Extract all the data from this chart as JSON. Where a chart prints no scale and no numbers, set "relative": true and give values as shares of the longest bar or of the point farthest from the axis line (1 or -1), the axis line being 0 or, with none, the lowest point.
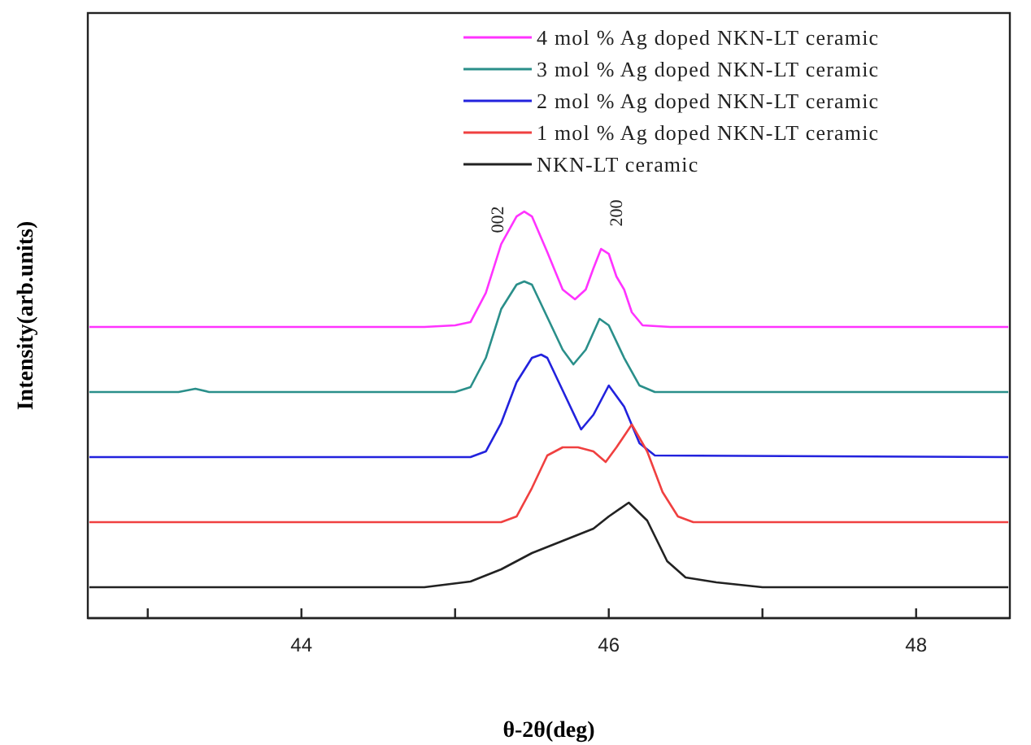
{
  "chart_data": {
    "type": "line",
    "relative": true,
    "xlabel": "θ-2θ(deg)",
    "ylabel": "Intensity(arb.units)",
    "xlim": [
      42.61,
      48.61
    ],
    "xticks": [
      {
        "value": 43,
        "label": null
      },
      44,
      {
        "value": 45,
        "label": null
      },
      46,
      {
        "value": 47,
        "label": null
      },
      48
    ],
    "legend": "top right",
    "grid": false,
    "marker": "none",
    "line_style": "solid",
    "tick_labels": "x",
    "annotations": [
      "002",
      "200"
    ],
    "series": [
      {
        "name": "4 mol % Ag doped NKN-LT ceramic",
        "color": "#ff33ff",
        "x": [
          42.62,
          44.0,
          44.8,
          45.0,
          45.1,
          45.2,
          45.3,
          45.4,
          45.45,
          45.5,
          45.6,
          45.7,
          45.78,
          45.85,
          45.9,
          45.95,
          46.0,
          46.05,
          46.1,
          46.15,
          46.22,
          46.4,
          47.0,
          48.6
        ],
        "values": [
          0.716,
          0.716,
          0.716,
          0.72,
          0.728,
          0.8,
          0.92,
          0.988,
          1.0,
          0.988,
          0.9,
          0.808,
          0.784,
          0.808,
          0.86,
          0.908,
          0.896,
          0.84,
          0.808,
          0.752,
          0.72,
          0.716,
          0.716,
          0.716
        ]
      },
      {
        "name": "3 mol % Ag doped NKN-LT ceramic",
        "color": "#2a8f8a",
        "x": [
          42.62,
          43.2,
          43.31,
          43.4,
          45.0,
          45.1,
          45.2,
          45.3,
          45.4,
          45.45,
          45.5,
          45.6,
          45.7,
          45.77,
          45.85,
          45.94,
          46.0,
          46.1,
          46.2,
          46.3,
          48.6
        ],
        "values": [
          0.556,
          0.556,
          0.564,
          0.556,
          0.556,
          0.568,
          0.64,
          0.76,
          0.82,
          0.828,
          0.82,
          0.74,
          0.66,
          0.624,
          0.66,
          0.736,
          0.72,
          0.64,
          0.572,
          0.556,
          0.556
        ]
      },
      {
        "name": "2 mol % Ag doped NKN-LT ceramic",
        "color": "#2222dd",
        "x": [
          42.62,
          45.1,
          45.2,
          45.3,
          45.4,
          45.5,
          45.56,
          45.6,
          45.7,
          45.82,
          45.9,
          46.0,
          46.1,
          46.2,
          46.3,
          48.6
        ],
        "values": [
          0.396,
          0.396,
          0.41,
          0.48,
          0.58,
          0.64,
          0.648,
          0.64,
          0.56,
          0.464,
          0.5,
          0.572,
          0.52,
          0.43,
          0.4,
          0.396
        ]
      },
      {
        "name": "1 mol % Ag doped NKN-LT ceramic",
        "color": "#f04040",
        "x": [
          42.62,
          45.3,
          45.4,
          45.5,
          45.6,
          45.7,
          45.8,
          45.9,
          45.98,
          46.05,
          46.15,
          46.25,
          46.35,
          46.45,
          46.55,
          48.6
        ],
        "values": [
          0.236,
          0.236,
          0.25,
          0.32,
          0.4,
          0.42,
          0.42,
          0.41,
          0.384,
          0.42,
          0.476,
          0.41,
          0.31,
          0.25,
          0.236,
          0.236
        ]
      },
      {
        "name": "NKN-LT ceramic",
        "color": "#222222",
        "x": [
          42.62,
          44.8,
          45.1,
          45.3,
          45.5,
          45.7,
          45.9,
          46.0,
          46.13,
          46.25,
          46.38,
          46.5,
          46.7,
          47.0,
          48.6
        ],
        "values": [
          0.076,
          0.076,
          0.09,
          0.12,
          0.16,
          0.19,
          0.22,
          0.25,
          0.284,
          0.24,
          0.14,
          0.1,
          0.088,
          0.076,
          0.076
        ]
      }
    ]
  }
}
